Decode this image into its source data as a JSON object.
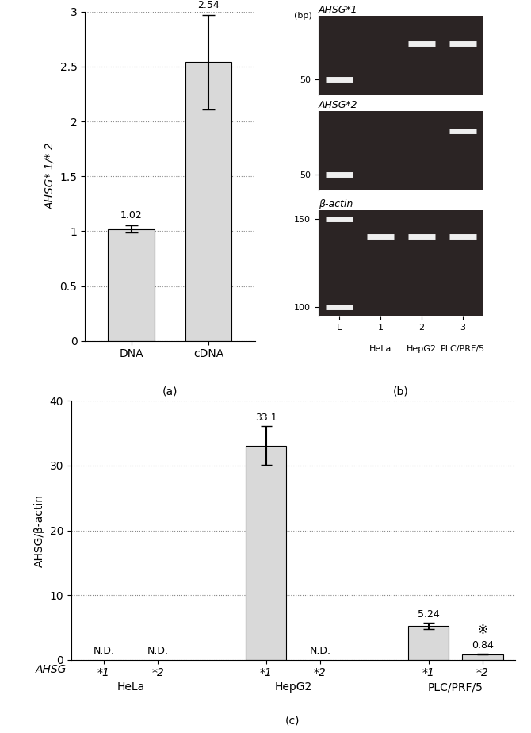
{
  "chart_data": [
    {
      "type": "bar",
      "panel_label": "(a)",
      "categories": [
        "DNA",
        "cDNA"
      ],
      "values": [
        1.02,
        2.54
      ],
      "error": [
        0.035,
        0.43
      ],
      "data_labels": true,
      "y_label": "AHSG* 1/* 2",
      "ylim": [
        0,
        3
      ],
      "yticks": [
        0,
        0.5,
        1,
        1.5,
        2,
        2.5,
        3
      ],
      "grid": true,
      "color": "#d9d9d9"
    },
    {
      "type": "bar",
      "panel_label": "(c)",
      "categories": [
        "*1",
        "*2",
        null,
        "*1",
        "*2",
        null,
        "*1",
        "*2"
      ],
      "values": [
        null,
        null,
        null,
        33.1,
        null,
        null,
        5.24,
        0.84
      ],
      "error": [
        null,
        null,
        null,
        3.0,
        null,
        null,
        0.45,
        0.05
      ],
      "value_labels": [
        "N.D.",
        "N.D.",
        null,
        "33.1",
        "N.D.",
        null,
        "5.24",
        "0.84"
      ],
      "data_labels": true,
      "groups": [
        "HeLa",
        "HepG2",
        "PLC/PRF/5"
      ],
      "row_label": "AHSG",
      "annotations": [
        {
          "text": "※",
          "index": 7
        }
      ],
      "y_label": "AHSG/β-actin",
      "ylim": [
        0,
        40
      ],
      "yticks": [
        0,
        10,
        20,
        30,
        40
      ],
      "grid": true,
      "color": "#d9d9d9"
    }
  ],
  "gel": {
    "panel_label": "(b)",
    "unit_label": "(bp)",
    "lanes": [
      "L",
      "1",
      "2",
      "3"
    ],
    "lane_names": [
      null,
      "HeLa",
      "HepG2",
      "PLC/PRF/5"
    ],
    "gels": [
      {
        "title": "AHSG*1",
        "ylim": [
          40,
          90
        ],
        "yticks": [
          50
        ],
        "bands": [
          {
            "lane": "L",
            "bp": 50
          },
          {
            "lane": "2",
            "bp": 72.5
          },
          {
            "lane": "3",
            "bp": 72.5
          }
        ]
      },
      {
        "title": "AHSG*2",
        "ylim": [
          40,
          90
        ],
        "yticks": [
          50
        ],
        "bands": [
          {
            "lane": "L",
            "bp": 50
          },
          {
            "lane": "3",
            "bp": 77.5
          }
        ]
      },
      {
        "title": "β-actin",
        "ylim": [
          95,
          155
        ],
        "yticks": [
          100,
          150
        ],
        "bands": [
          {
            "lane": "L",
            "bp": 150
          },
          {
            "lane": "L",
            "bp": 100
          },
          {
            "lane": "1",
            "bp": 140
          },
          {
            "lane": "2",
            "bp": 140
          },
          {
            "lane": "3",
            "bp": 140
          }
        ]
      }
    ]
  }
}
